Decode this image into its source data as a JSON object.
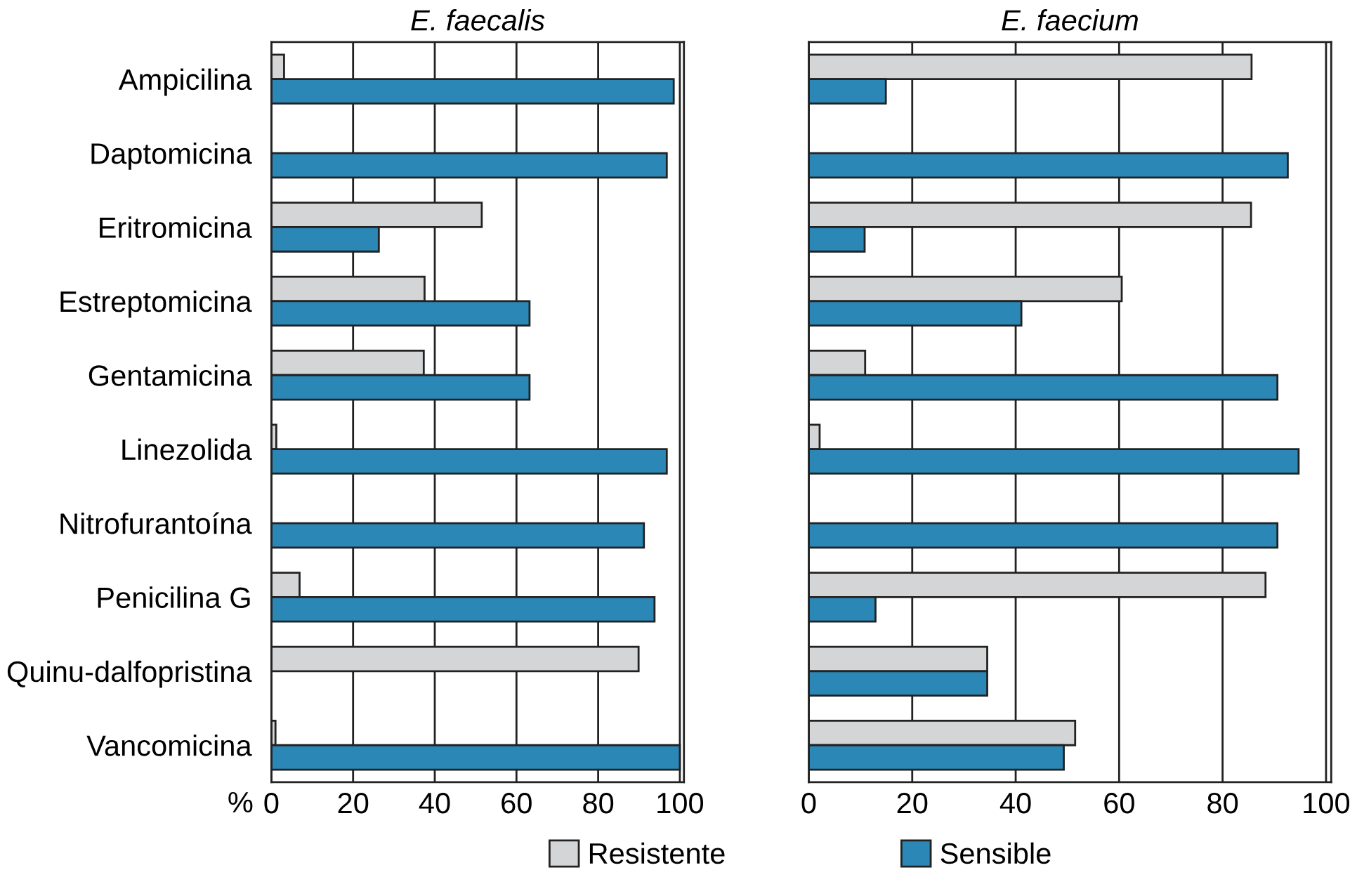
{
  "chart_data": [
    {
      "type": "bar",
      "orientation": "horizontal",
      "title": "E. faecalis",
      "xlabel": "%",
      "categories": [
        "Ampicilina",
        "Daptomicina",
        "Eritromicina",
        "Estreptomicina",
        "Gentamicina",
        "Linezolida",
        "Nitrofurantoína",
        "Penicilina G",
        "Quinu-dalfopristina",
        "Vancomicina"
      ],
      "series": [
        {
          "name": "Resistente",
          "color": "#d4d5d7",
          "values": [
            3.1,
            null,
            51.5,
            37.5,
            37.3,
            1.2,
            null,
            6.9,
            89.9,
            1.0
          ]
        },
        {
          "name": "Sensible",
          "color": "#2b87b6",
          "values": [
            98.5,
            96.8,
            26.3,
            63.2,
            63.2,
            96.8,
            91.2,
            93.8,
            null,
            100
          ]
        }
      ],
      "xlim": [
        0,
        101
      ],
      "xticks": [
        0,
        20,
        40,
        60,
        80,
        100
      ],
      "grid": "x",
      "legend": "bottom"
    },
    {
      "type": "bar",
      "orientation": "horizontal",
      "title": "E. faecium",
      "categories": [
        null,
        null,
        null,
        null,
        null,
        null,
        null,
        null,
        null,
        null
      ],
      "series": [
        {
          "name": "Resistente",
          "color": "#d4d5d7",
          "values": [
            85.6,
            null,
            85.5,
            60.5,
            10.9,
            2.1,
            null,
            88.3,
            34.5,
            51.5
          ]
        },
        {
          "name": "Sensible",
          "color": "#2b87b6",
          "values": [
            14.9,
            92.6,
            10.8,
            41.1,
            90.6,
            94.7,
            90.6,
            12.9,
            34.5,
            49.3
          ]
        }
      ],
      "xlim": [
        0,
        101
      ],
      "xticks": [
        0,
        20,
        40,
        60,
        80,
        100
      ],
      "grid": "x",
      "tick_labels": "x",
      "legend": "bottom"
    }
  ]
}
